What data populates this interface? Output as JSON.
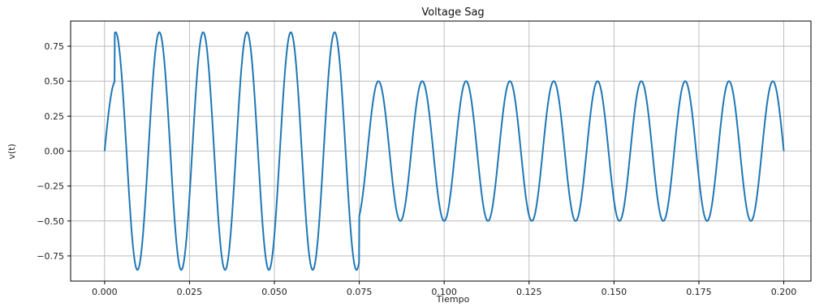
{
  "chart_data": {
    "type": "line",
    "title": "Voltage Sag",
    "xlabel": "Tiempo",
    "ylabel": "v(t)",
    "xlim": [
      -0.01,
      0.208
    ],
    "ylim": [
      -0.93,
      0.93
    ],
    "grid": true,
    "x_ticks": [
      "0.000",
      "0.025",
      "0.050",
      "0.075",
      "0.100",
      "0.125",
      "0.150",
      "0.175",
      "0.200"
    ],
    "y_ticks": [
      "−0.75",
      "−0.50",
      "−0.25",
      "0.00",
      "0.25",
      "0.50",
      "0.75"
    ],
    "series": [
      {
        "frequency_hz": 77.5,
        "segments": [
          {
            "t_start": 0.0,
            "t_end": 0.003,
            "amplitude": 0.5
          },
          {
            "t_start": 0.003,
            "t_end": 0.075,
            "amplitude": 0.85
          },
          {
            "t_start": 0.075,
            "t_end": 0.2,
            "amplitude": 0.5
          }
        ],
        "color": "#1f77b4"
      }
    ]
  }
}
